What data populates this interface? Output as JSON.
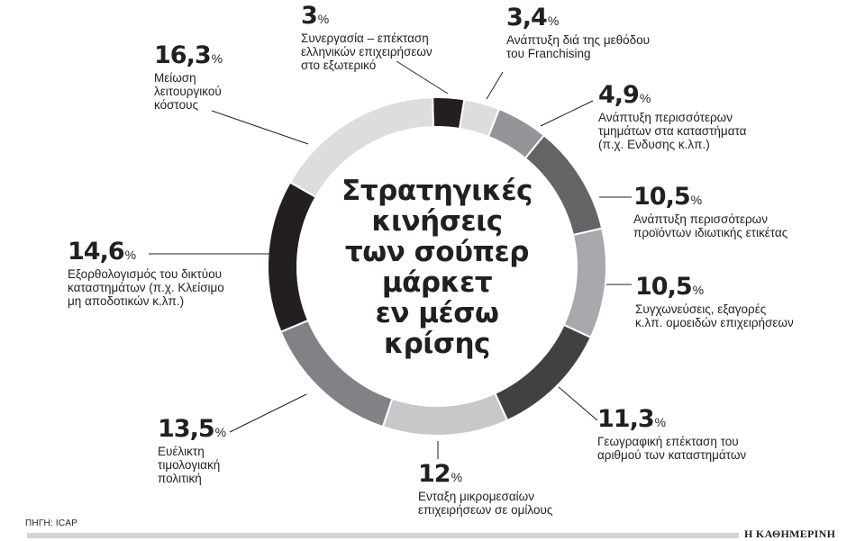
{
  "chart_data": {
    "type": "pie",
    "variant": "donut",
    "title": "Στρατηγικές κινήσεις των σούπερ μάρκετ εν μέσω κρίσης",
    "unit": "%",
    "slices": [
      {
        "label": "Συνεργασία - επέκταση ελληνικών επιχειρήσεων στο εξωτερικό",
        "value": 3.0,
        "display": "3",
        "color": "#231f20"
      },
      {
        "label": "Ανάπτυξη διά της μεθόδου του Franchising",
        "value": 3.4,
        "display": "3,4",
        "color": "#dcddde"
      },
      {
        "label": "Ανάπτυξη περισσότερων τμημάτων στα καταστήματα (π.χ. Ενδυσης κ.λπ.)",
        "value": 4.9,
        "display": "4,9",
        "color": "#939598"
      },
      {
        "label": "Ανάπτυξη περισσότερων προϊόντων ιδιωτικής ετικέτας",
        "value": 10.5,
        "display": "10,5",
        "color": "#636466"
      },
      {
        "label": "Συγχωνεύσεις, εξαγορές κ.λπ. ομοειδών επιχειρήσεων",
        "value": 10.5,
        "display": "10,5",
        "color": "#a7a9ac"
      },
      {
        "label": "Γεωγραφική επέκταση του αριθμού των καταστημάτων",
        "value": 11.3,
        "display": "11,3",
        "color": "#414042"
      },
      {
        "label": "Ενταξη μικρομεσαίων επιχειρήσεων σε ομίλους",
        "value": 12.0,
        "display": "12",
        "color": "#c7c8ca"
      },
      {
        "label": "Ευέλικτη τιμολογιακή πολιτική",
        "value": 13.5,
        "display": "13,5",
        "color": "#808285"
      },
      {
        "label": "Εξορθολογισμός του δικτύου καταστημάτων (π.χ. Κλείσιμο μη αποδοτικών κ.λπ.)",
        "value": 14.6,
        "display": "14,6",
        "color": "#231f20"
      },
      {
        "label": "Μείωση λειτουργικού κόστους",
        "value": 16.3,
        "display": "16,3",
        "color": "#dcddde"
      }
    ],
    "start_angle_deg": 0,
    "direction": "clockwise",
    "legend": "none (callout labels)"
  },
  "center_title_lines": [
    "Στρατηγικές",
    "κινήσεις",
    "των σούπερ",
    "μάρκετ",
    "εν μέσω",
    "κρίσης"
  ],
  "percent_symbol": "%",
  "callouts": [
    {
      "pct": "3",
      "lines": [
        "Συνεργασία – επέκταση",
        "ελληνικών επιχειρήσεων",
        "στο εξωτερικό"
      ]
    },
    {
      "pct": "3,4",
      "lines": [
        "Ανάπτυξη διά της μεθόδου",
        "του Franchising"
      ]
    },
    {
      "pct": "4,9",
      "lines": [
        "Ανάπτυξη περισσότερων",
        "τμημάτων στα καταστήματα",
        "(π.χ. Ενδυσης κ.λπ.)"
      ]
    },
    {
      "pct": "10,5",
      "lines": [
        "Ανάπτυξη περισσότερων",
        "προϊόντων ιδιωτικής ετικέτας"
      ]
    },
    {
      "pct": "10,5",
      "lines": [
        "Συγχωνεύσεις, εξαγορές",
        "κ.λπ. ομοειδών επιχειρήσεων"
      ]
    },
    {
      "pct": "11,3",
      "lines": [
        "Γεωγραφική επέκταση του",
        "αριθμού των καταστημάτων"
      ]
    },
    {
      "pct": "12",
      "lines": [
        "Ενταξη μικρομεσαίων",
        "επιχειρήσεων σε ομίλους"
      ]
    },
    {
      "pct": "13,5",
      "lines": [
        "Ευέλικτη",
        "τιμολογιακή",
        "πολιτική"
      ]
    },
    {
      "pct": "14,6",
      "lines": [
        "Εξορθολογισμός του δικτύου",
        "καταστημάτων (π.χ. Κλείσιμο",
        "μη αποδοτικών κ.λπ.)"
      ]
    },
    {
      "pct": "16,3",
      "lines": [
        "Μείωση",
        "λειτουργικού",
        "κόστους"
      ]
    }
  ],
  "footer": {
    "source": "ΠΗΓΗ: ICAP",
    "brand": "Η ΚΑΘΗΜΕΡΙΝΗ"
  }
}
